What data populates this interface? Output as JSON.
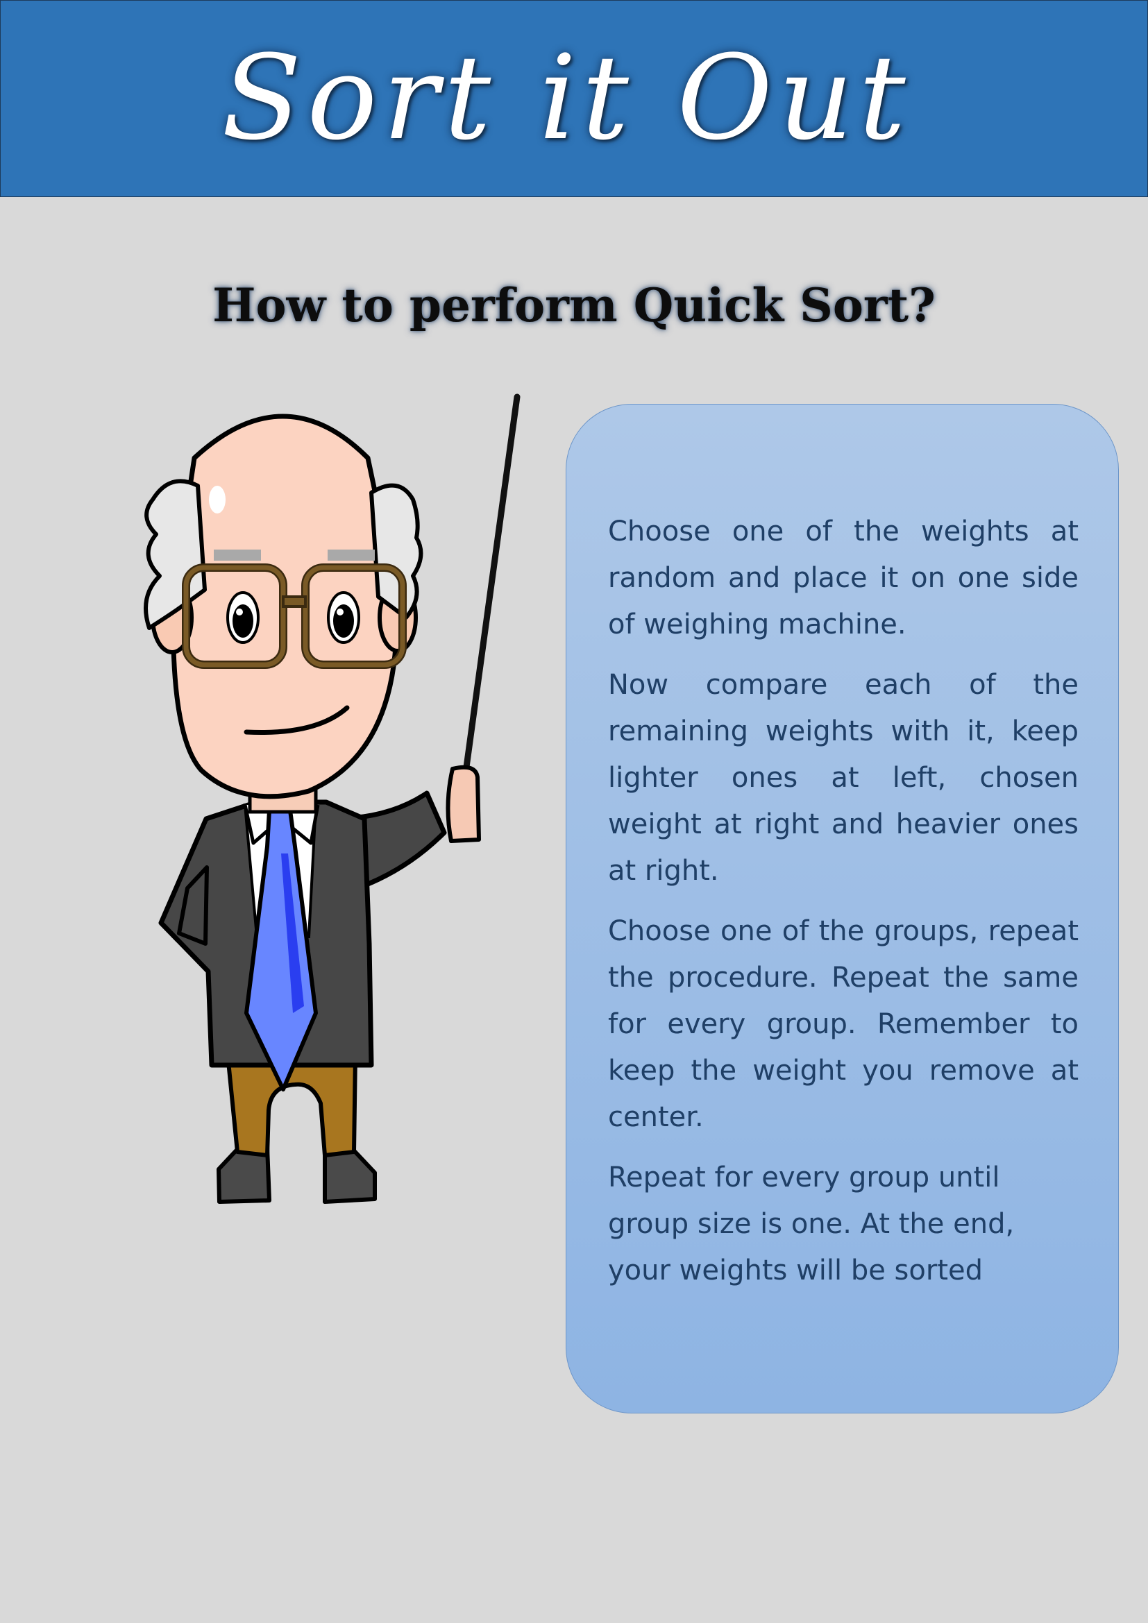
{
  "header": {
    "title": "Sort it Out",
    "band_color": "#2e74b7"
  },
  "subtitle": "How to perform Quick Sort?",
  "illustration": {
    "icon": "teacher-with-pointer-icon"
  },
  "panel": {
    "steps": [
      "Choose one of the weights at random and place it on one side of weighing machine.",
      "Now compare each of the remaining weights with it, keep lighter ones at left, chosen weight at right and heavier ones at right.",
      "Choose one of the groups, repeat the procedure. Repeat the same for every group. Remember to keep the weight you remove at center.",
      "Repeat for every group until group size is one. At the end, your weights will be sorted"
    ],
    "text_color": "#1f3f66",
    "gradient_top": "#aec8e8",
    "gradient_bottom": "#8eb4e3"
  },
  "page_background": "#d9d9d9"
}
